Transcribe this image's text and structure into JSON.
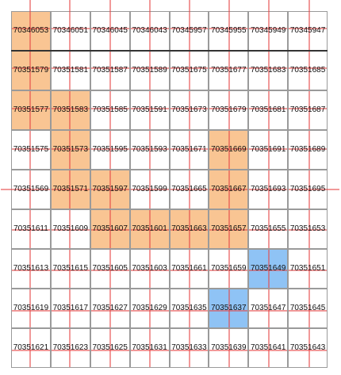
{
  "grid": {
    "rows": [
      [
        "70346053",
        "70346051",
        "70346045",
        "70346043",
        "70345957",
        "70345955",
        "70345949",
        "70345947"
      ],
      [
        "70351579",
        "70351581",
        "70351587",
        "70351589",
        "70351675",
        "70351677",
        "70351683",
        "70351685"
      ],
      [
        "70351577",
        "70351583",
        "70351585",
        "70351591",
        "70351673",
        "70351679",
        "70351681",
        "70351687"
      ],
      [
        "70351575",
        "70351573",
        "70351595",
        "70351593",
        "70351671",
        "70351669",
        "70351691",
        "70351689"
      ],
      [
        "70351569",
        "70351571",
        "70351597",
        "70351599",
        "70351665",
        "70351667",
        "70351693",
        "70351695"
      ],
      [
        "70351611",
        "70351609",
        "70351607",
        "70351601",
        "70351663",
        "70351657",
        "70351655",
        "70351653"
      ],
      [
        "70351613",
        "70351615",
        "70351605",
        "70351603",
        "70351661",
        "70351659",
        "70351649",
        "70351651"
      ],
      [
        "70351619",
        "70351617",
        "70351627",
        "70351629",
        "70351635",
        "70351637",
        "70351647",
        "70351645"
      ],
      [
        "70351621",
        "70351623",
        "70351625",
        "70351631",
        "70351633",
        "70351639",
        "70351641",
        "70351643"
      ]
    ],
    "highlight": [
      [
        "orange",
        "none",
        "none",
        "none",
        "none",
        "none",
        "none",
        "none"
      ],
      [
        "orange",
        "none",
        "none",
        "none",
        "none",
        "none",
        "none",
        "none"
      ],
      [
        "orange",
        "orange",
        "none",
        "none",
        "none",
        "none",
        "none",
        "none"
      ],
      [
        "none",
        "orange",
        "none",
        "none",
        "none",
        "orange",
        "none",
        "none"
      ],
      [
        "none",
        "orange",
        "orange",
        "none",
        "none",
        "orange",
        "none",
        "none"
      ],
      [
        "none",
        "none",
        "orange",
        "orange",
        "orange",
        "orange",
        "none",
        "none"
      ],
      [
        "none",
        "none",
        "none",
        "none",
        "none",
        "none",
        "blue",
        "none"
      ],
      [
        "none",
        "none",
        "none",
        "none",
        "none",
        "blue",
        "none",
        "none"
      ],
      [
        "none",
        "none",
        "none",
        "none",
        "none",
        "none",
        "none",
        "none"
      ]
    ]
  },
  "colors": {
    "orange": "#f9c593",
    "blue": "#8fc3f5",
    "line": "#e84a4a",
    "border": "#9a9a9a"
  }
}
